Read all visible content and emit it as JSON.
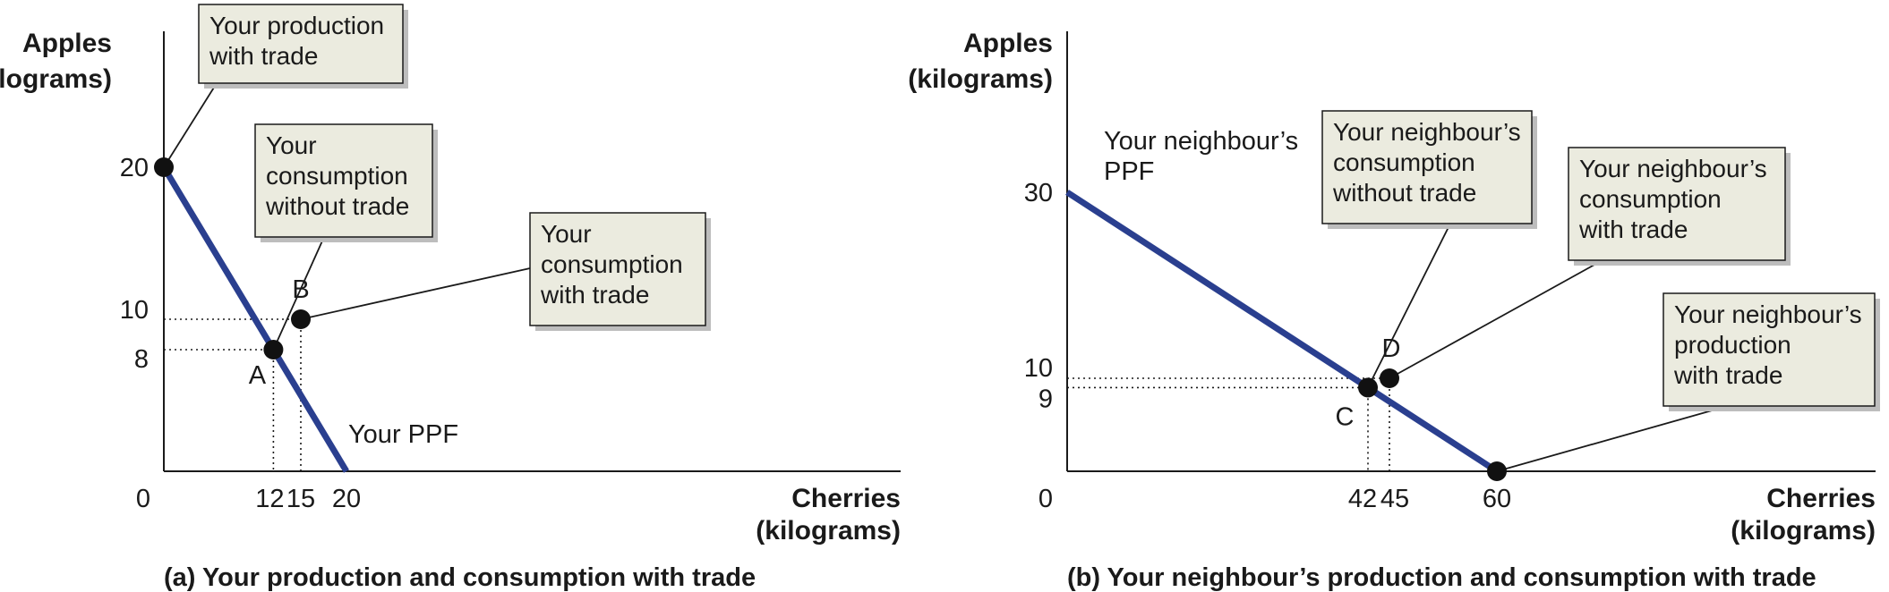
{
  "chart_data": [
    {
      "type": "line",
      "caption": "(a) Your production and consumption with trade",
      "ylabel": [
        "Apples",
        "(kilograms)"
      ],
      "xlabel": [
        "Cherries",
        "(kilograms)"
      ],
      "origin_label": "0",
      "x_ticks": [
        "12",
        "15",
        "20"
      ],
      "y_ticks": [
        "20",
        "10",
        "8"
      ],
      "xlim": [
        0,
        80
      ],
      "ylim": [
        0,
        48
      ],
      "series": [
        {
          "name": "Your PPF",
          "points": [
            [
              0,
              20
            ],
            [
              20,
              0
            ]
          ]
        }
      ],
      "points": [
        {
          "id": "prod",
          "x": 0,
          "y": 20,
          "label": ""
        },
        {
          "id": "A",
          "x": 12,
          "y": 8,
          "label": "A"
        },
        {
          "id": "B",
          "x": 15,
          "y": 10,
          "label": "B"
        }
      ],
      "guides": [
        {
          "x": 12,
          "y": 8
        },
        {
          "x": 15,
          "y": 10
        }
      ],
      "callouts": [
        {
          "id": "a-prod",
          "lines": [
            "Your production",
            "with trade"
          ],
          "target": "prod"
        },
        {
          "id": "a-nocons",
          "lines": [
            "Your",
            "consumption",
            "without trade"
          ],
          "target": "A"
        },
        {
          "id": "a-cons",
          "lines": [
            "Your",
            "consumption",
            "with trade"
          ],
          "target": "B"
        }
      ]
    },
    {
      "type": "line",
      "caption": "(b) Your neighbour’s production and consumption with trade",
      "ylabel": [
        "Apples",
        "(kilograms)"
      ],
      "xlabel": [
        "Cherries",
        "(kilograms)"
      ],
      "origin_label": "0",
      "x_ticks": [
        "42",
        "45",
        "60"
      ],
      "y_ticks": [
        "30",
        "10",
        "9"
      ],
      "xlim": [
        0,
        80
      ],
      "ylim": [
        0,
        48
      ],
      "series": [
        {
          "name": "Your neighbour’s PPF",
          "label_lines": [
            "Your neighbour’s",
            "PPF"
          ],
          "points": [
            [
              0,
              30
            ],
            [
              60,
              0
            ]
          ]
        }
      ],
      "points": [
        {
          "id": "C",
          "x": 42,
          "y": 9,
          "label": "C"
        },
        {
          "id": "D",
          "x": 45,
          "y": 10,
          "label": "D"
        },
        {
          "id": "prod",
          "x": 60,
          "y": 0,
          "label": ""
        }
      ],
      "guides": [
        {
          "x": 42,
          "y": 9
        },
        {
          "x": 45,
          "y": 10
        }
      ],
      "callouts": [
        {
          "id": "b-nocons",
          "lines": [
            "Your neighbour’s",
            "consumption",
            "without trade"
          ],
          "target": "C"
        },
        {
          "id": "b-cons",
          "lines": [
            "Your neighbour’s",
            "consumption",
            "with trade"
          ],
          "target": "D"
        },
        {
          "id": "b-prod",
          "lines": [
            "Your neighbour’s",
            "production",
            "with trade"
          ],
          "target": "prod"
        }
      ]
    }
  ],
  "colors": {
    "ppf": "#2a3f8f",
    "box_fill": "#ebebdf",
    "ink": "#1a1a1a",
    "shadow": "#bdbdbd"
  }
}
